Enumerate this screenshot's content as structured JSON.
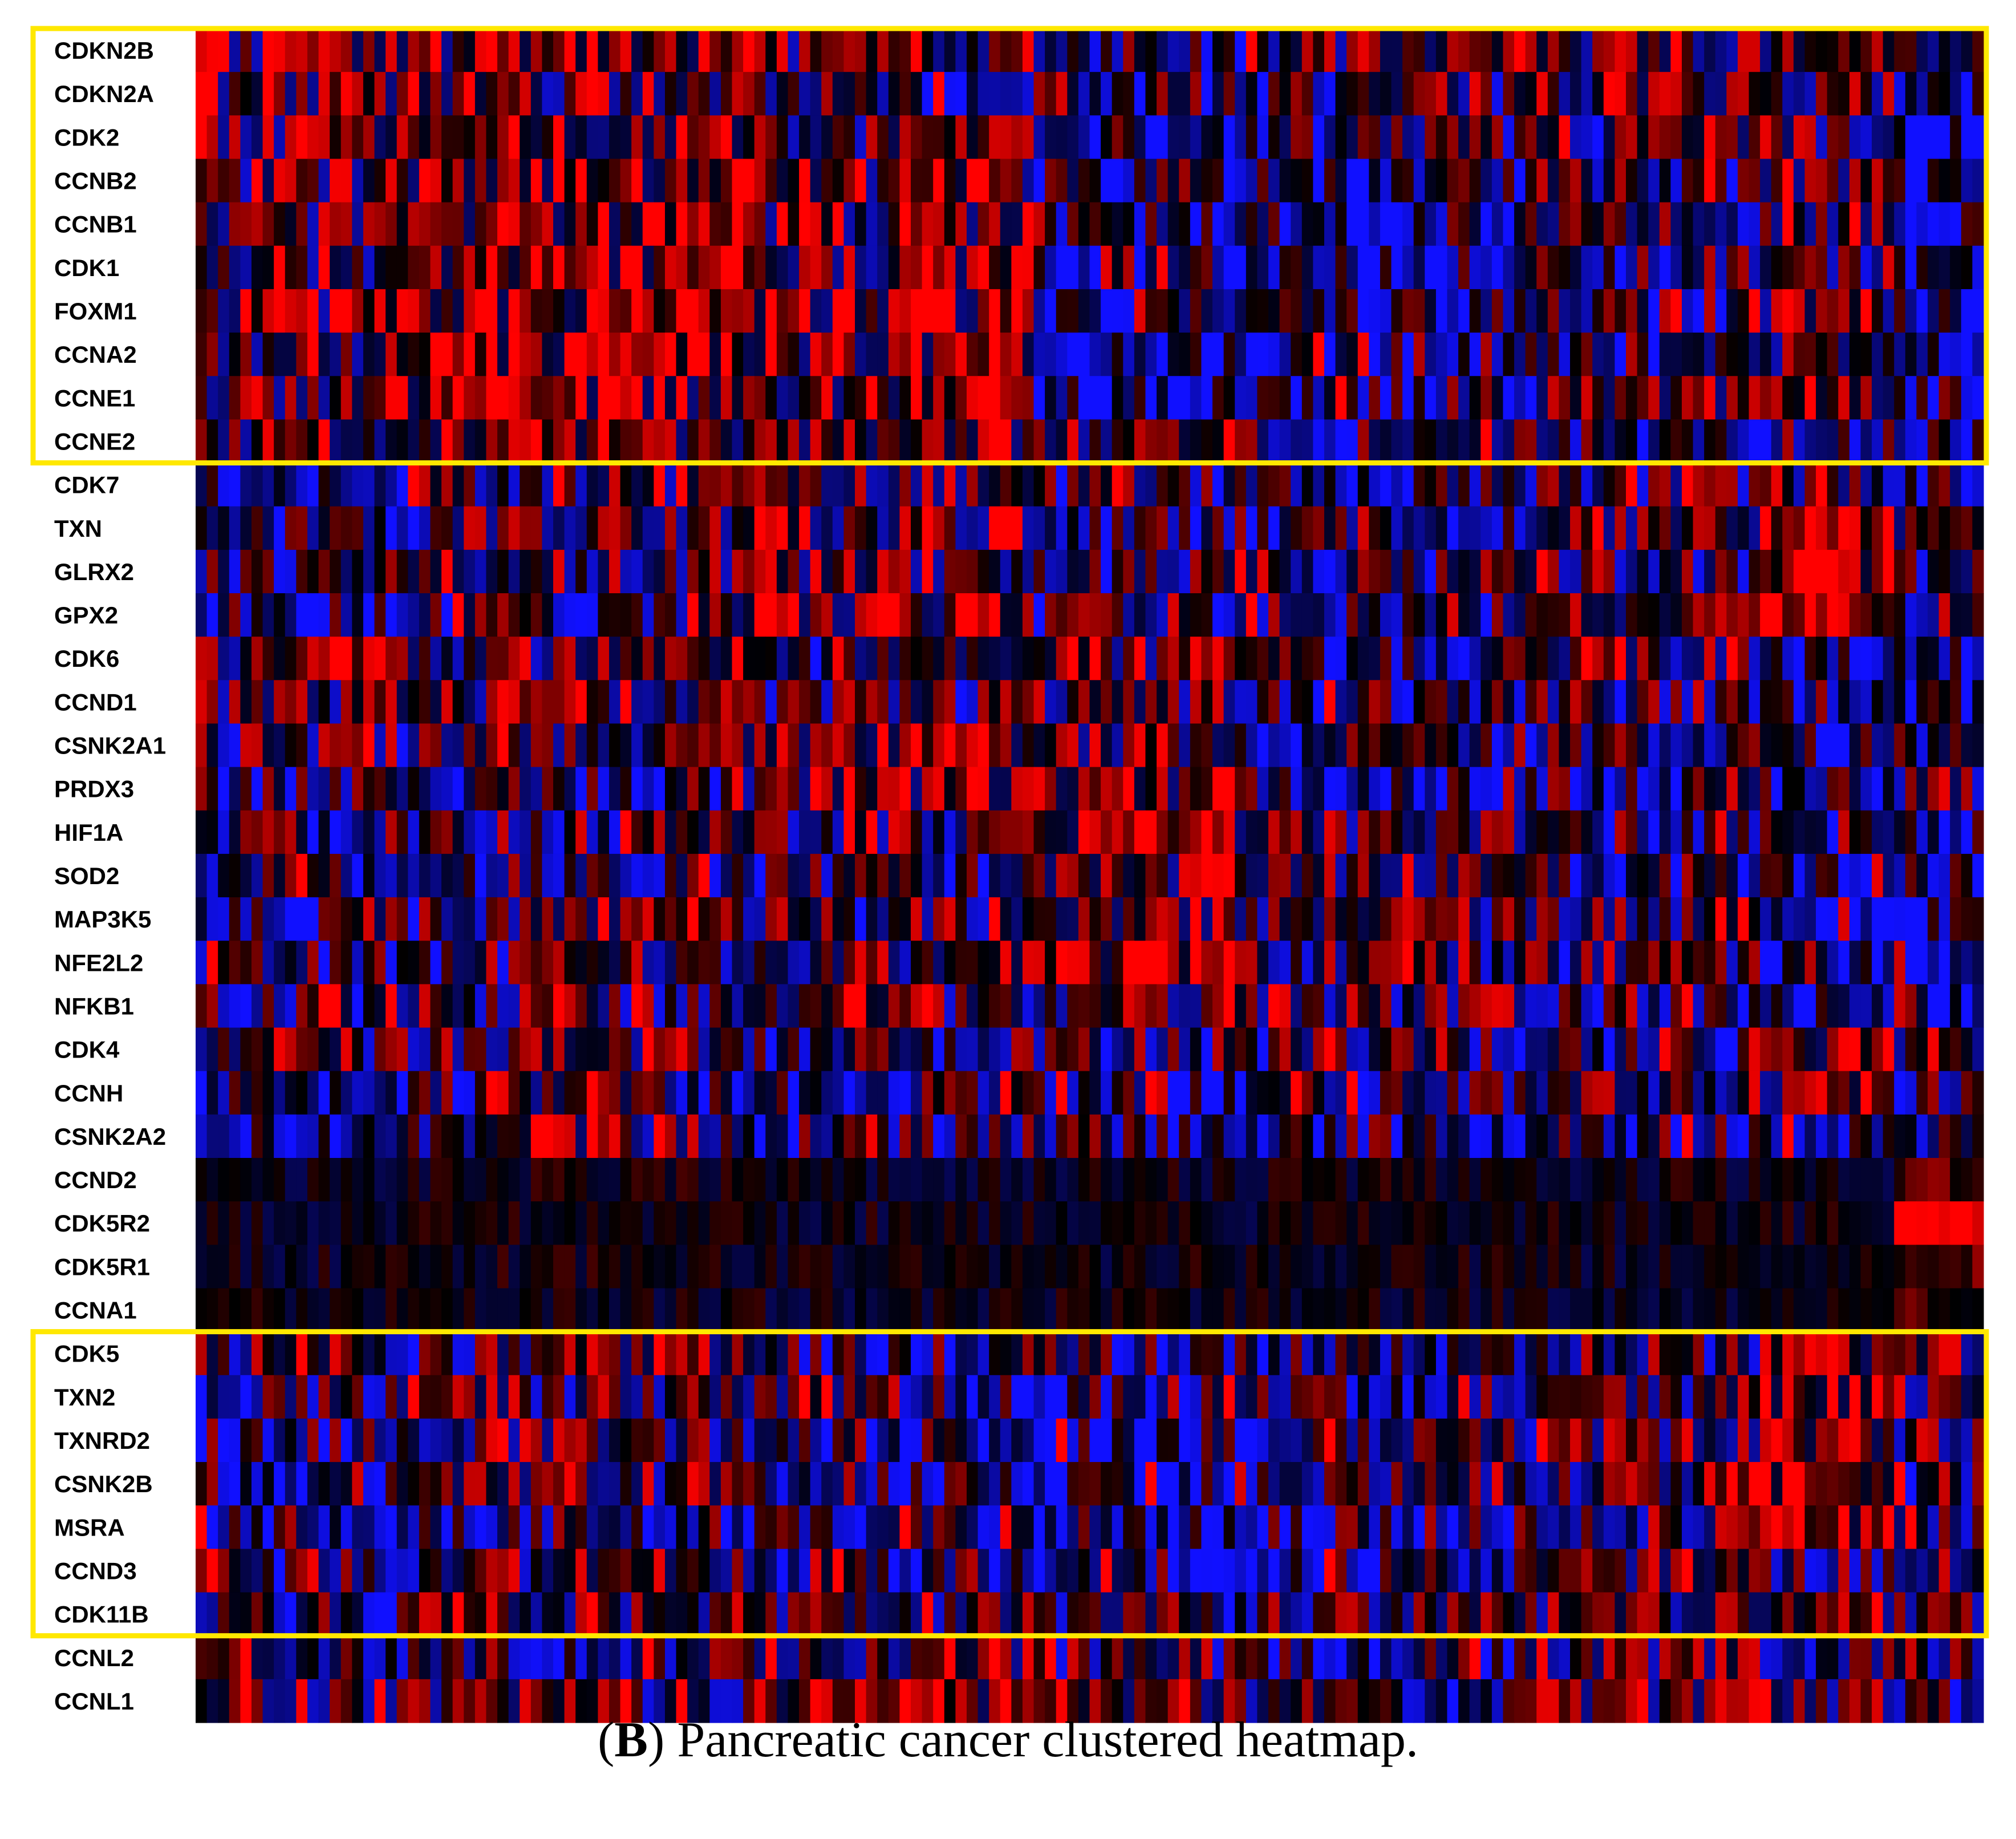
{
  "caption": {
    "letter": "B",
    "open_paren": "(",
    "close_paren": ")",
    "text": " Pancreatic cancer clustered heatmap."
  },
  "chart_data": {
    "type": "heatmap",
    "title": "Pancreatic cancer clustered heatmap.",
    "xlabel": "",
    "ylabel": "",
    "color_scale": {
      "low": "#1010ff",
      "mid": "#000000",
      "high": "#ff0000"
    },
    "value_range": [
      -1,
      1
    ],
    "columns": 160,
    "rows": [
      "CDKN2B",
      "CDKN2A",
      "CDK2",
      "CCNB2",
      "CCNB1",
      "CDK1",
      "FOXM1",
      "CCNA2",
      "CCNE1",
      "CCNE2",
      "CDK7",
      "TXN",
      "GLRX2",
      "GPX2",
      "CDK6",
      "CCND1",
      "CSNK2A1",
      "PRDX3",
      "HIF1A",
      "SOD2",
      "MAP3K5",
      "NFE2L2",
      "NFKB1",
      "CDK4",
      "CCNH",
      "CSNK2A2",
      "CCND2",
      "CDK5R2",
      "CDK5R1",
      "CCNA1",
      "CDK5",
      "TXN2",
      "TXNRD2",
      "CSNK2B",
      "MSRA",
      "CCND3",
      "CDK11B",
      "CCNL2",
      "CCNL1"
    ],
    "highlight_boxes": [
      {
        "from_gene": "CDKN2B",
        "to_gene": "CCNE2",
        "color": "#ffe800"
      },
      {
        "from_gene": "CDK5",
        "to_gene": "CDK11B",
        "color": "#ffe800"
      }
    ]
  }
}
